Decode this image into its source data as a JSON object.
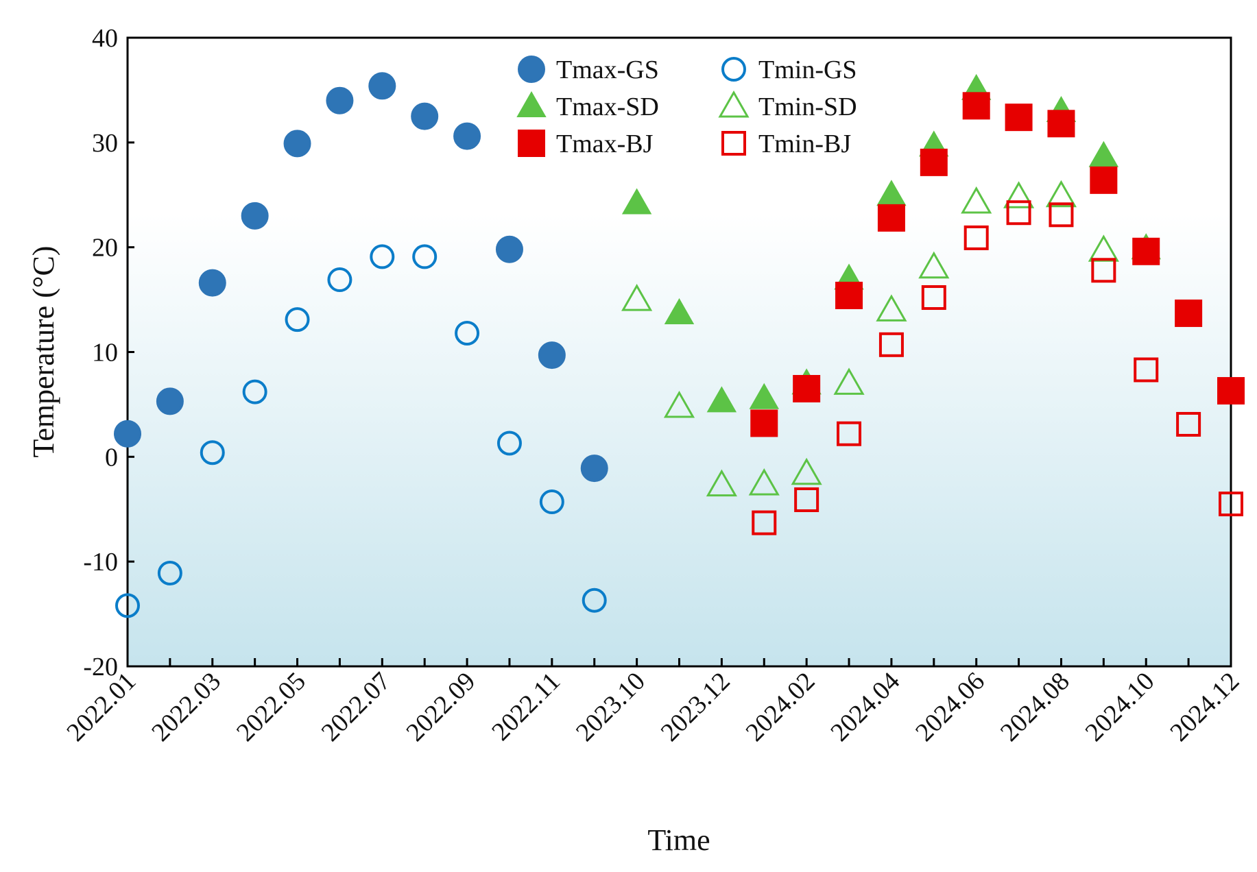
{
  "chart_data": {
    "type": "scatter",
    "title": "",
    "xlabel": "Time",
    "ylabel": "Temperature (°C)",
    "ylim": [
      -20,
      40
    ],
    "yticks": [
      40,
      30,
      20,
      10,
      0,
      -10,
      -20
    ],
    "grid": false,
    "background": "gradient white (top) to light blue (bottom)",
    "legend_position": "top, inside plot",
    "categories": [
      "2022.01",
      "2022.02",
      "2022.03",
      "2022.04",
      "2022.05",
      "2022.06",
      "2022.07",
      "2022.08",
      "2022.09",
      "2022.10",
      "2022.11",
      "2022.12",
      "2023.10",
      "2023.11",
      "2023.12",
      "2024.01",
      "2024.02",
      "2024.03",
      "2024.04",
      "2024.05",
      "2024.06",
      "2024.07",
      "2024.08",
      "2024.09",
      "2024.10",
      "2024.11",
      "2024.12"
    ],
    "tick_labels": [
      "2022.01",
      "2022.03",
      "2022.05",
      "2022.07",
      "2022.09",
      "2022.11",
      "2023.10",
      "2023.12",
      "2024.02",
      "2024.04",
      "2024.06",
      "2024.08",
      "2024.10",
      "2024.12"
    ],
    "series": [
      {
        "name": "Tmax-GS",
        "marker": "circle",
        "filled": true,
        "color": "#2e75b6",
        "values": [
          2.2,
          5.3,
          16.6,
          23.0,
          29.9,
          34.0,
          35.4,
          32.5,
          30.6,
          19.8,
          9.7,
          -1.1,
          null,
          null,
          null,
          null,
          null,
          null,
          null,
          null,
          null,
          null,
          null,
          null,
          null,
          null,
          null
        ]
      },
      {
        "name": "Tmin-GS",
        "marker": "circle",
        "filled": false,
        "color": "#0b7dc9",
        "values": [
          -14.2,
          -11.1,
          0.4,
          6.2,
          13.1,
          16.9,
          19.1,
          19.1,
          11.8,
          1.3,
          -4.3,
          -13.7,
          null,
          null,
          null,
          null,
          null,
          null,
          null,
          null,
          null,
          null,
          null,
          null,
          null,
          null,
          null
        ]
      },
      {
        "name": "Tmax-SD",
        "marker": "triangle",
        "filled": true,
        "color": "#5cc346",
        "values": [
          null,
          null,
          null,
          null,
          null,
          null,
          null,
          null,
          null,
          null,
          null,
          null,
          24.2,
          13.7,
          5.3,
          5.6,
          7.0,
          17.0,
          25.0,
          29.7,
          35.1,
          null,
          33.0,
          28.7,
          19.9,
          null,
          null
        ]
      },
      {
        "name": "Tmin-SD",
        "marker": "triangle",
        "filled": false,
        "color": "#5cc346",
        "values": [
          null,
          null,
          null,
          null,
          null,
          null,
          null,
          null,
          null,
          null,
          null,
          null,
          15.0,
          4.8,
          -2.7,
          -2.6,
          -1.6,
          7.0,
          14.0,
          18.1,
          24.3,
          24.8,
          24.9,
          19.7,
          null,
          null,
          null
        ]
      },
      {
        "name": "Tmax-BJ",
        "marker": "square",
        "filled": true,
        "color": "#e60000",
        "values": [
          null,
          null,
          null,
          null,
          null,
          null,
          null,
          null,
          null,
          null,
          null,
          null,
          null,
          null,
          null,
          3.2,
          6.5,
          15.4,
          22.8,
          28.1,
          33.5,
          32.4,
          31.8,
          26.4,
          19.6,
          13.7,
          6.3
        ]
      },
      {
        "name": "Tmin-BJ",
        "marker": "square",
        "filled": false,
        "color": "#e60000",
        "values": [
          null,
          null,
          null,
          null,
          null,
          null,
          null,
          null,
          null,
          null,
          null,
          null,
          null,
          null,
          null,
          -6.3,
          -4.1,
          2.2,
          10.7,
          15.2,
          20.9,
          23.3,
          23.1,
          17.8,
          8.3,
          3.1,
          -4.5
        ]
      }
    ]
  }
}
